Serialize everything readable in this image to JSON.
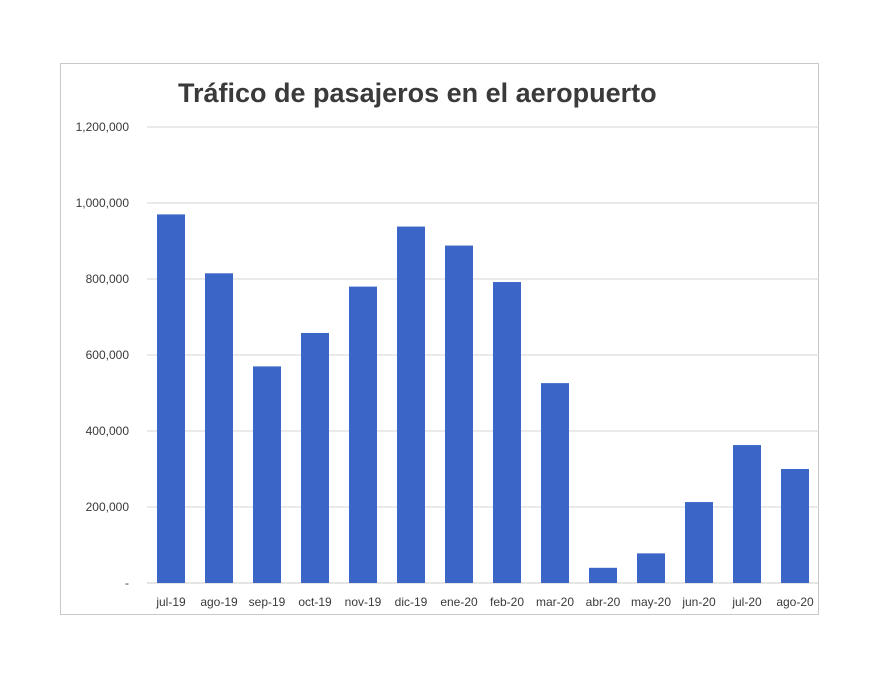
{
  "chart_data": {
    "type": "bar",
    "title": "Tráfico de pasajeros en el aeropuerto",
    "xlabel": "",
    "ylabel": "",
    "categories": [
      "jul-19",
      "ago-19",
      "sep-19",
      "oct-19",
      "nov-19",
      "dic-19",
      "ene-20",
      "feb-20",
      "mar-20",
      "abr-20",
      "may-20",
      "jun-20",
      "jul-20",
      "ago-20"
    ],
    "values": [
      970000,
      815000,
      570000,
      658000,
      780000,
      938000,
      888000,
      792000,
      526000,
      40000,
      78000,
      213000,
      363000,
      300000
    ],
    "ylim": [
      0,
      1200000
    ],
    "yticks": [
      0,
      200000,
      400000,
      600000,
      800000,
      1000000,
      1200000
    ],
    "ytick_labels": [
      "-",
      "200,000",
      "400,000",
      "600,000",
      "800,000",
      "1,000,000",
      "1,200,000"
    ],
    "bar_color": "#3b66c8",
    "grid": true,
    "legend": "none"
  }
}
